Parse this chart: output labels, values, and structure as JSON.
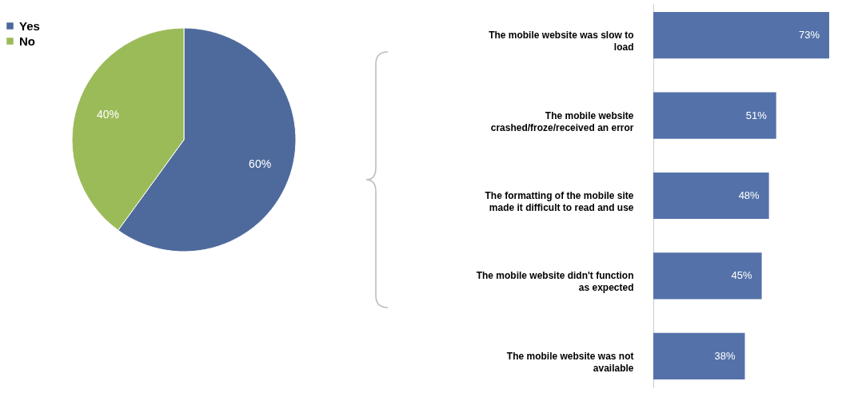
{
  "chart_data": [
    {
      "type": "pie",
      "categories": [
        "Yes",
        "No"
      ],
      "values": [
        60,
        40
      ],
      "colors": [
        "#4e6a9c",
        "#9bbb59"
      ],
      "value_labels": [
        "60%",
        "40%"
      ],
      "legend": "left"
    },
    {
      "type": "bar",
      "orientation": "horizontal",
      "categories": [
        "The mobile website was slow to load",
        "The mobile website crashed/froze/received an error",
        "The formatting of the mobile site made it difficult to read and use",
        "The mobile website didn't function as expected",
        "The mobile website was not available"
      ],
      "values": [
        73,
        51,
        48,
        45,
        38
      ],
      "value_labels": [
        "73%",
        "51%",
        "48%",
        "45%",
        "38%"
      ],
      "color": "#5472a9"
    }
  ]
}
